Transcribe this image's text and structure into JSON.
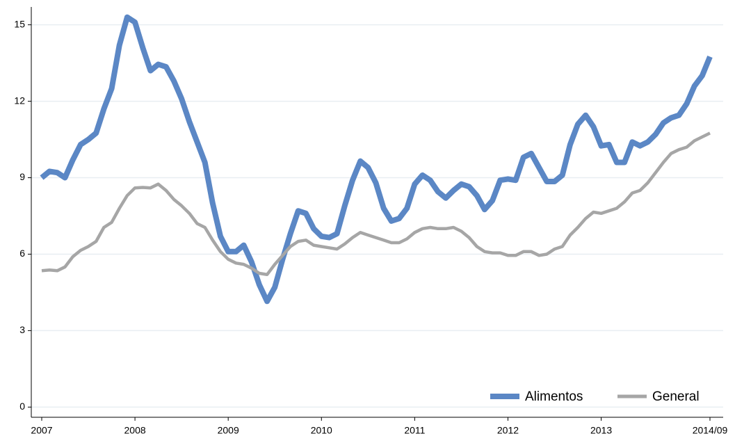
{
  "chart_data": {
    "type": "line",
    "categories": [
      "2007",
      null,
      null,
      null,
      null,
      null,
      null,
      null,
      null,
      null,
      null,
      null,
      "2008",
      null,
      null,
      null,
      null,
      null,
      null,
      null,
      null,
      null,
      null,
      null,
      "2009",
      null,
      null,
      null,
      null,
      null,
      null,
      null,
      null,
      null,
      null,
      null,
      "2010",
      null,
      null,
      null,
      null,
      null,
      null,
      null,
      null,
      null,
      null,
      null,
      "2011",
      null,
      null,
      null,
      null,
      null,
      null,
      null,
      null,
      null,
      null,
      null,
      "2012",
      null,
      null,
      null,
      null,
      null,
      null,
      null,
      null,
      null,
      null,
      null,
      "2013",
      null,
      null,
      null,
      null,
      null,
      null,
      null,
      null,
      null,
      null,
      null,
      null,
      null,
      "2014/09"
    ],
    "series": [
      {
        "name": "Alimentos",
        "color": "#5b87c5",
        "values": [
          9.0,
          9.25,
          9.2,
          9.0,
          9.7,
          10.3,
          10.5,
          10.75,
          11.7,
          12.5,
          14.2,
          15.3,
          15.1,
          14.1,
          13.2,
          13.45,
          13.35,
          12.8,
          12.1,
          11.2,
          10.4,
          9.6,
          8.0,
          6.7,
          6.1,
          6.1,
          6.35,
          5.7,
          4.8,
          4.15,
          4.7,
          5.8,
          6.8,
          7.7,
          7.6,
          7.0,
          6.7,
          6.65,
          6.8,
          7.9,
          8.9,
          9.65,
          9.4,
          8.8,
          7.8,
          7.3,
          7.4,
          7.8,
          8.75,
          9.1,
          8.9,
          8.45,
          8.2,
          8.5,
          8.75,
          8.65,
          8.3,
          7.75,
          8.1,
          8.9,
          8.95,
          8.9,
          9.8,
          9.95,
          9.4,
          8.85,
          8.85,
          9.1,
          10.3,
          11.1,
          11.45,
          11.0,
          10.25,
          10.3,
          9.6,
          9.6,
          10.4,
          10.25,
          10.4,
          10.7,
          11.15,
          11.35,
          11.45,
          11.9,
          12.6,
          13.0,
          13.75
        ]
      },
      {
        "name": "General",
        "color": "#a6a6a6",
        "values": [
          5.35,
          5.38,
          5.35,
          5.5,
          5.9,
          6.15,
          6.3,
          6.5,
          7.05,
          7.25,
          7.8,
          8.3,
          8.6,
          8.62,
          8.6,
          8.75,
          8.5,
          8.15,
          7.9,
          7.6,
          7.2,
          7.05,
          6.55,
          6.1,
          5.8,
          5.65,
          5.6,
          5.45,
          5.25,
          5.2,
          5.6,
          5.95,
          6.3,
          6.5,
          6.55,
          6.35,
          6.3,
          6.25,
          6.2,
          6.4,
          6.65,
          6.85,
          6.75,
          6.65,
          6.55,
          6.45,
          6.45,
          6.6,
          6.85,
          7.0,
          7.05,
          7.0,
          7.0,
          7.05,
          6.9,
          6.65,
          6.3,
          6.1,
          6.05,
          6.05,
          5.95,
          5.95,
          6.1,
          6.1,
          5.95,
          6.0,
          6.2,
          6.3,
          6.75,
          7.05,
          7.4,
          7.65,
          7.6,
          7.7,
          7.8,
          8.05,
          8.4,
          8.5,
          8.8,
          9.2,
          9.6,
          9.95,
          10.1,
          10.2,
          10.45,
          10.6,
          10.75
        ]
      }
    ],
    "ylim": [
      -0.4,
      15.7
    ],
    "yticks": [
      0,
      3,
      6,
      9,
      12,
      15
    ],
    "grid": true,
    "legend": "lower right"
  }
}
